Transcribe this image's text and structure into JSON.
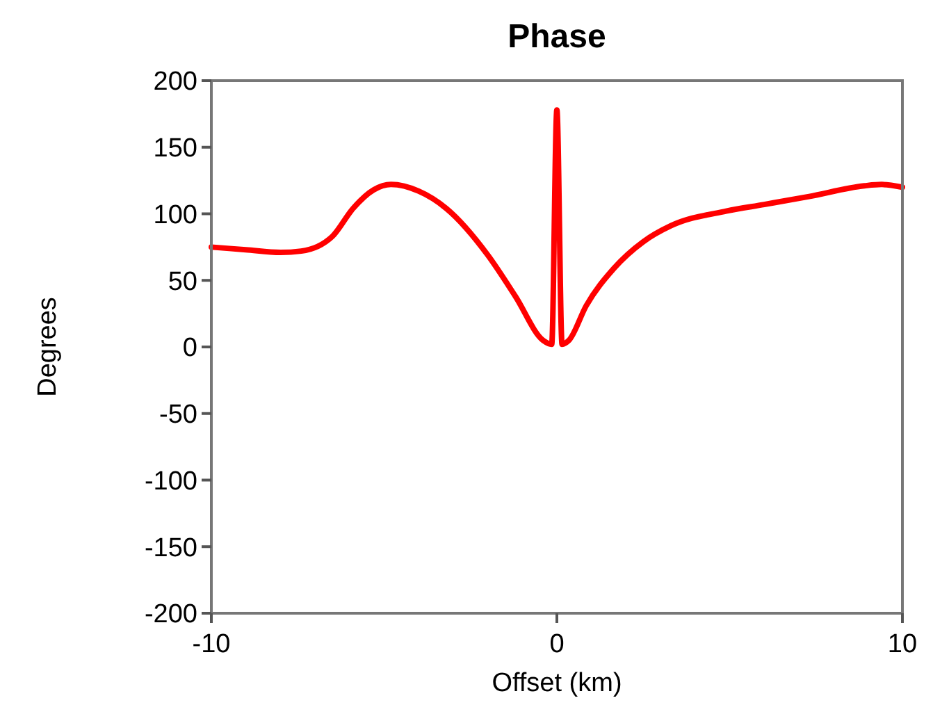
{
  "chart_data": {
    "type": "line",
    "title": "Phase",
    "xlabel": "Offset (km)",
    "ylabel": "Degrees",
    "xlim": [
      -10,
      10
    ],
    "xticks": [
      -10,
      0,
      10
    ],
    "ylim": [
      -200,
      200
    ],
    "yticks": [
      -200,
      -150,
      -100,
      -50,
      0,
      50,
      100,
      150,
      200
    ],
    "grid": false,
    "marker": "none",
    "line_style": "solid",
    "series": [
      {
        "color": "#ff0000",
        "x": [
          -10,
          -9,
          -8,
          -7.4,
          -6.5,
          -5.9,
          -5.3,
          -4.8,
          -4,
          -3.2,
          -2,
          -1.2,
          -0.4,
          -0.15,
          0,
          0.15,
          0.35,
          0.85,
          1.65,
          2.5,
          3.3,
          4.9,
          6,
          7.3,
          8.9,
          9.4,
          10
        ],
        "values": [
          75,
          73,
          71,
          72,
          83,
          104,
          118,
          122,
          117,
          104,
          69,
          38,
          5,
          2,
          178,
          2,
          5,
          31,
          59,
          79,
          91,
          102,
          107,
          113,
          121,
          122,
          120
        ]
      }
    ]
  }
}
